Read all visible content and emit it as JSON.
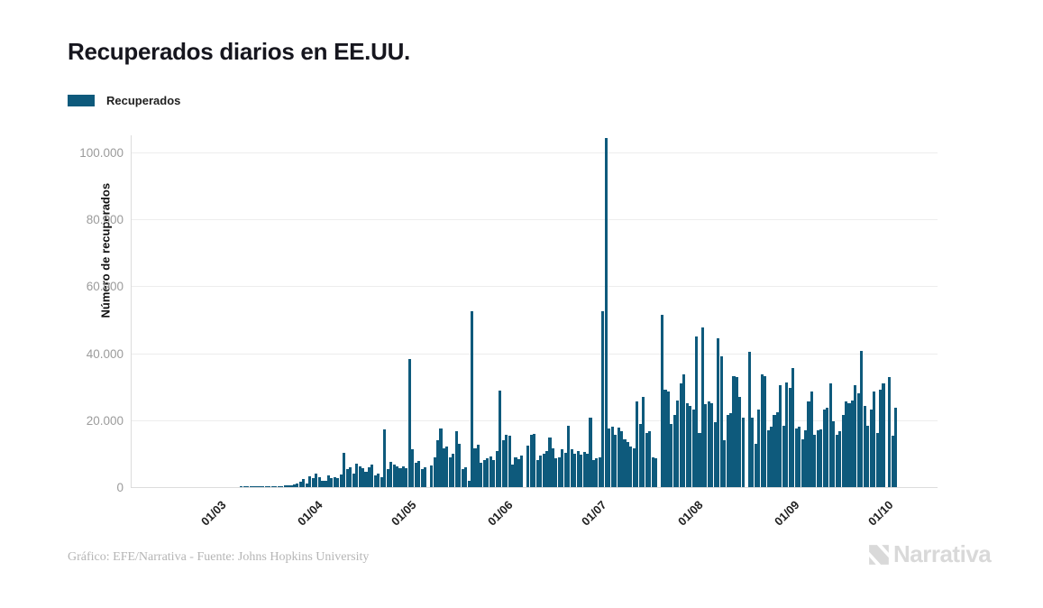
{
  "chart": {
    "title": "Recuperados diarios en EE.UU.",
    "legend_label": "Recuperados",
    "ylabel": "Número de recuperados"
  },
  "footer": {
    "credit": "Gráfico: EFE/Narrativa - Fuente: Johns Hopkins University",
    "logo_text": "Narrativa"
  },
  "colors": {
    "bar": "#0E5A7C",
    "grid": "#ededed",
    "axis": "#dcdcdc",
    "y_tick_text": "#9b9b9b",
    "x_tick_text": "#1f1f1f",
    "title_text": "#16161e",
    "footer_text": "#b5b5b5",
    "logo_text": "#d9d9d9"
  },
  "chart_data": {
    "type": "bar",
    "title": "Recuperados diarios en EE.UU.",
    "series_name": "Recuperados",
    "xlabel": "",
    "ylabel": "Número de recuperados",
    "ylim": [
      0,
      110000
    ],
    "grid": true,
    "legend_position": "top-left",
    "date_format": "DD/MM",
    "x_start_date": "05/02",
    "x_end_date": "06/10",
    "x_ticks": [
      {
        "label": "01/03",
        "day": 25
      },
      {
        "label": "01/04",
        "day": 56
      },
      {
        "label": "01/05",
        "day": 86
      },
      {
        "label": "01/06",
        "day": 117
      },
      {
        "label": "01/07",
        "day": 147
      },
      {
        "label": "01/08",
        "day": 178
      },
      {
        "label": "01/09",
        "day": 209
      },
      {
        "label": "01/10",
        "day": 239
      }
    ],
    "y_ticks": [
      {
        "value": 0,
        "label": "0"
      },
      {
        "value": 20000,
        "label": "20.000"
      },
      {
        "value": 40000,
        "label": "40.000"
      },
      {
        "value": 60000,
        "label": "60.000"
      },
      {
        "value": 80000,
        "label": "80.000"
      },
      {
        "value": 100000,
        "label": "100.000"
      }
    ],
    "values": [
      0,
      0,
      0,
      0,
      0,
      0,
      0,
      0,
      0,
      0,
      0,
      0,
      0,
      0,
      0,
      0,
      0,
      0,
      0,
      0,
      0,
      0,
      0,
      0,
      0,
      0,
      0,
      0,
      0,
      0,
      0,
      0,
      0,
      0,
      100,
      150,
      100,
      150,
      200,
      150,
      200,
      150,
      200,
      250,
      200,
      250,
      300,
      400,
      500,
      450,
      600,
      800,
      1100,
      1600,
      2300,
      1000,
      3300,
      2600,
      4000,
      2900,
      1800,
      2000,
      3400,
      2700,
      3100,
      2700,
      3800,
      10300,
      5400,
      6000,
      4000,
      7000,
      6300,
      5600,
      4500,
      5800,
      6700,
      3600,
      4000,
      2900,
      17200,
      5400,
      7600,
      6700,
      6100,
      5600,
      6300,
      5600,
      38300,
      11200,
      7200,
      7900,
      5400,
      5800,
      0,
      6500,
      9000,
      13900,
      17500,
      11500,
      12100,
      9000,
      9900,
      16600,
      13000,
      5500,
      6000,
      2000,
      52600,
      11700,
      12800,
      7200,
      8100,
      8500,
      9200,
      8100,
      10800,
      28900,
      13900,
      15700,
      15400,
      6700,
      9000,
      8300,
      9400,
      0,
      12400,
      15700,
      15900,
      8100,
      9400,
      9900,
      10800,
      14800,
      11700,
      8500,
      9000,
      11200,
      10300,
      18400,
      11200,
      9900,
      10800,
      9600,
      10600,
      9900,
      20800,
      8000,
      8600,
      9000,
      52600,
      104200,
      17500,
      18000,
      15700,
      17800,
      16600,
      14400,
      13500,
      12100,
      11700,
      25600,
      19000,
      26900,
      16200,
      16600,
      9000,
      8500,
      0,
      51400,
      29200,
      28700,
      19000,
      21600,
      26000,
      31000,
      33700,
      25100,
      24200,
      23300,
      44900,
      16200,
      47800,
      24700,
      25600,
      25000,
      19300,
      44400,
      39100,
      13900,
      21600,
      22000,
      33200,
      32800,
      26900,
      20700,
      0,
      40400,
      20700,
      13000,
      23300,
      33700,
      33200,
      17100,
      18000,
      21600,
      22400,
      30500,
      18400,
      31200,
      29600,
      35500,
      17500,
      18000,
      14400,
      17100,
      25600,
      28700,
      15700,
      17100,
      17300,
      23300,
      23800,
      31000,
      19800,
      15700,
      16600,
      21600,
      25600,
      25100,
      25800,
      30500,
      28000,
      40600,
      24200,
      18400,
      23300,
      28700,
      16200,
      29200,
      31000,
      0,
      32800,
      15300,
      23800
    ]
  }
}
